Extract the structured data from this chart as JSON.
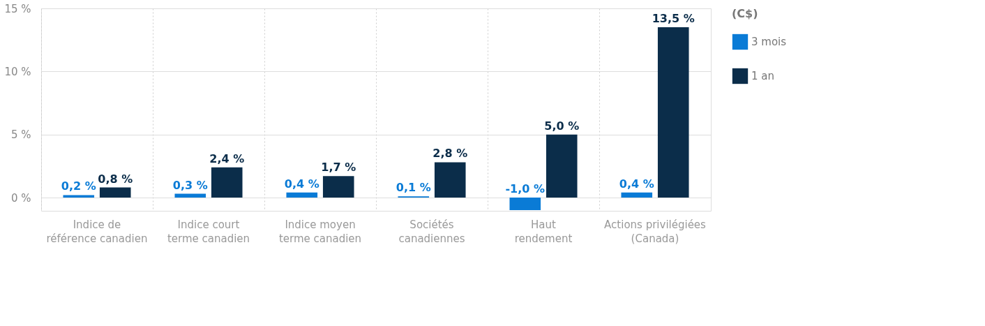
{
  "chart_data": {
    "type": "bar",
    "categories": [
      "Indice de\nréférence canadien",
      "Indice court\nterme canadien",
      "Indice moyen\nterme canadien",
      "Sociétés\ncanadiennes",
      "Haut\nrendement",
      "Actions privilégiées\n(Canada)"
    ],
    "series": [
      {
        "name": "3 mois",
        "color": "#0a7bd6",
        "values": [
          0.2,
          0.3,
          0.4,
          0.1,
          -1.0,
          0.4
        ],
        "value_labels": [
          "0,2 %",
          "0,3 %",
          "0,4 %",
          "0,1 %",
          "-1,0 %",
          "0,4 %"
        ]
      },
      {
        "name": "1 an",
        "color": "#0b2d4a",
        "values": [
          0.8,
          2.4,
          1.7,
          2.8,
          5.0,
          13.5
        ],
        "value_labels": [
          "0,8 %",
          "2,4 %",
          "1,7 %",
          "2,8 %",
          "5,0 %",
          "13,5 %"
        ]
      }
    ],
    "legend_title": "(C$)",
    "ylim": [
      -1.05,
      15
    ],
    "yticks": [
      {
        "value": 0,
        "label": "0 %"
      },
      {
        "value": 5,
        "label": "5 %"
      },
      {
        "value": 10,
        "label": "10 %"
      },
      {
        "value": 15,
        "label": "15 %"
      }
    ],
    "grid": true,
    "legend": "top right"
  }
}
